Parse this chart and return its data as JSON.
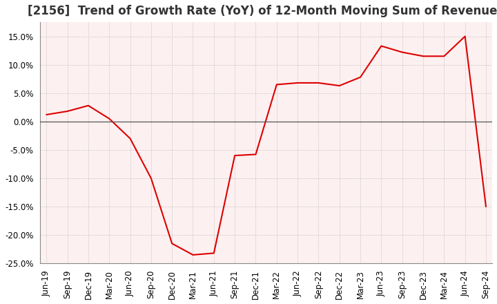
{
  "title": "[2156]  Trend of Growth Rate (YoY) of 12-Month Moving Sum of Revenues",
  "xlabels": [
    "Jun-19",
    "Sep-19",
    "Dec-19",
    "Mar-20",
    "Jun-20",
    "Sep-20",
    "Dec-20",
    "Mar-21",
    "Jun-21",
    "Sep-21",
    "Dec-21",
    "Mar-22",
    "Jun-22",
    "Sep-22",
    "Dec-22",
    "Mar-23",
    "Jun-23",
    "Sep-23",
    "Dec-23",
    "Mar-24",
    "Jun-24",
    "Sep-24"
  ],
  "x_values": [
    0,
    1,
    2,
    3,
    4,
    5,
    6,
    7,
    8,
    9,
    10,
    11,
    12,
    13,
    14,
    15,
    16,
    17,
    18,
    19,
    20,
    21
  ],
  "y_values": [
    1.2,
    1.8,
    2.8,
    0.5,
    -3.0,
    -10.0,
    -21.5,
    -23.5,
    -23.2,
    -6.0,
    -5.8,
    6.5,
    6.8,
    6.8,
    6.3,
    7.8,
    13.3,
    12.2,
    11.5,
    11.5,
    15.0,
    -15.0
  ],
  "ylim": [
    -25.0,
    17.5
  ],
  "yticks": [
    -25.0,
    -20.0,
    -15.0,
    -10.0,
    -5.0,
    0.0,
    5.0,
    10.0,
    15.0
  ],
  "line_color": "#dd0000",
  "plot_bg_color": "#fdf0f0",
  "outer_bg_color": "#ffffff",
  "grid_color": "#bbbbbb",
  "zero_line_color": "#555555",
  "title_fontsize": 12,
  "tick_fontsize": 8.5
}
